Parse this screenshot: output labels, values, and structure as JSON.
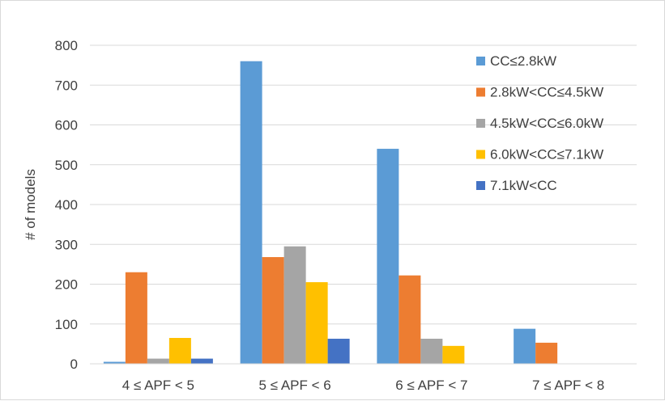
{
  "chart_data": {
    "type": "bar",
    "title": "",
    "xlabel": "",
    "ylabel": "# of models",
    "ylim": [
      0,
      800
    ],
    "yticks": [
      0,
      100,
      200,
      300,
      400,
      500,
      600,
      700,
      800
    ],
    "grid": true,
    "legend_position": "top-right",
    "categories": [
      "4 ≤ APF < 5",
      "5 ≤ APF < 6",
      "6 ≤ APF < 7",
      "7 ≤ APF < 8"
    ],
    "series": [
      {
        "name": "CC≤2.8kW",
        "color": "#5b9bd5",
        "values": [
          5,
          760,
          540,
          88
        ]
      },
      {
        "name": "2.8kW<CC≤4.5kW",
        "color": "#ed7d31",
        "values": [
          230,
          268,
          222,
          53
        ]
      },
      {
        "name": "4.5kW<CC≤6.0kW",
        "color": "#a5a5a5",
        "values": [
          13,
          295,
          63,
          0
        ]
      },
      {
        "name": "6.0kW<CC≤7.1kW",
        "color": "#ffc000",
        "values": [
          65,
          205,
          45,
          0
        ]
      },
      {
        "name": "7.1kW<CC",
        "color": "#4472c4",
        "values": [
          13,
          63,
          0,
          0
        ]
      }
    ]
  }
}
